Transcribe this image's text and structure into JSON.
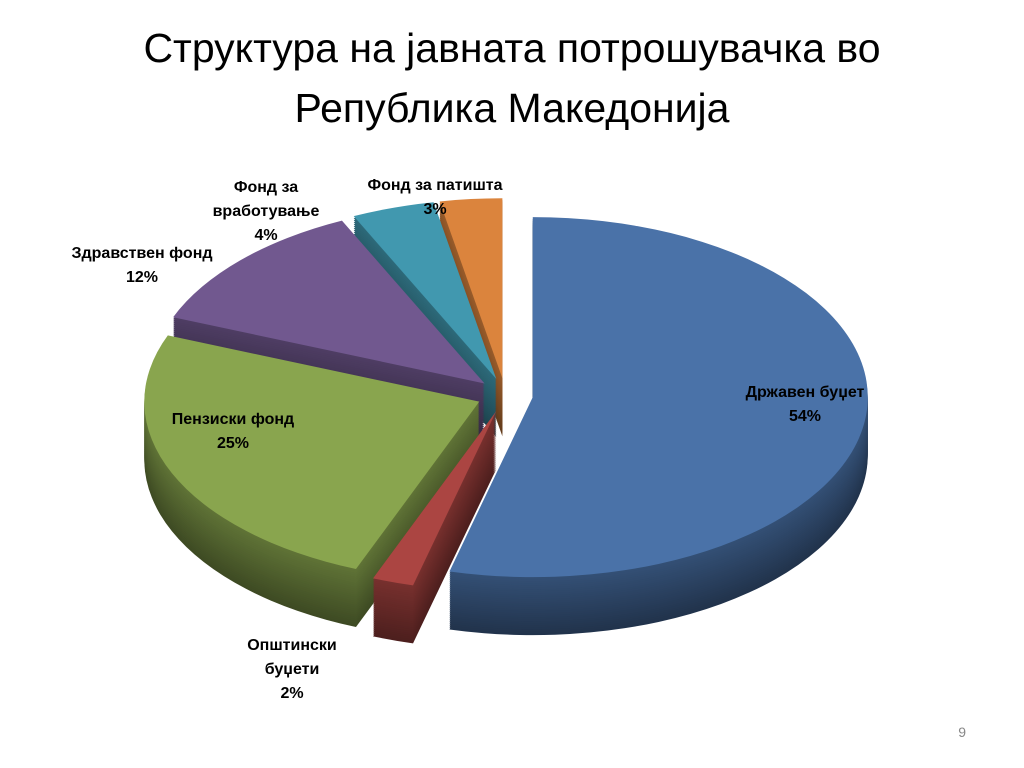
{
  "chart_data": {
    "type": "pie3d",
    "title": "Структура на јавната потрошувачка во Република Македонија",
    "categories": [
      "Државен буџет",
      "Општински буџети",
      "Пензиски фонд",
      "Здравствен фонд",
      "Фонд за вработување",
      "Фонд за патишта"
    ],
    "values": [
      54,
      2,
      25,
      12,
      4,
      3
    ],
    "value_labels": [
      "54%",
      "2%",
      "25%",
      "12%",
      "4%",
      "3%"
    ],
    "colors": [
      "#4a72a8",
      "#ab4542",
      "#89a54e",
      "#71588f",
      "#4198af",
      "#db843d"
    ]
  },
  "page_number": "9"
}
